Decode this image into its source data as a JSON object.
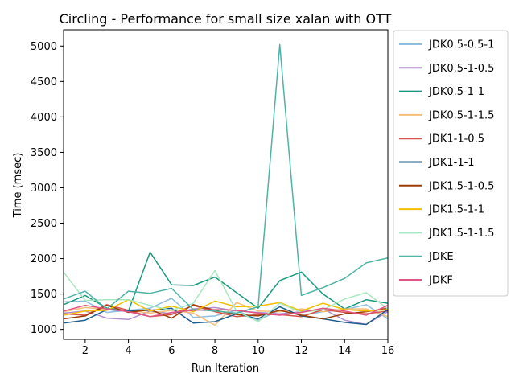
{
  "chart_data": {
    "type": "line",
    "title": "Circling - Performance for small size xalan with OTT",
    "xlabel": "Run Iteration",
    "ylabel": "Time (msec)",
    "xlim": [
      1,
      16
    ],
    "ylim": [
      860,
      5230
    ],
    "xticks": [
      2,
      4,
      6,
      8,
      10,
      12,
      14,
      16
    ],
    "yticks": [
      1000,
      1500,
      2000,
      2500,
      3000,
      3500,
      4000,
      4500,
      5000
    ],
    "legend_position": "outside-right",
    "grid": false,
    "x": [
      1,
      2,
      3,
      4,
      5,
      6,
      7,
      8,
      9,
      10,
      11,
      12,
      13,
      14,
      15,
      16
    ],
    "series": [
      {
        "name": "JDK0.5-0.5-1",
        "color": "#8fbfe0",
        "values": [
          1390,
          1400,
          1240,
          1270,
          1300,
          1440,
          1170,
          1190,
          1270,
          1130,
          1270,
          1200,
          1250,
          1280,
          1350,
          1150
        ]
      },
      {
        "name": "JDK0.5-1-0.5",
        "color": "#b48fcc",
        "values": [
          1230,
          1260,
          1160,
          1140,
          1260,
          1220,
          1290,
          1310,
          1260,
          1240,
          1220,
          1250,
          1290,
          1130,
          1070,
          1250
        ]
      },
      {
        "name": "JDK0.5-1-1",
        "color": "#1a9a80",
        "values": [
          1350,
          1480,
          1300,
          1260,
          2090,
          1630,
          1620,
          1740,
          1520,
          1300,
          1690,
          1810,
          1500,
          1290,
          1420,
          1370
        ]
      },
      {
        "name": "JDK0.5-1-1.5",
        "color": "#f5be78",
        "values": [
          1250,
          1310,
          1280,
          1270,
          1230,
          1270,
          1230,
          1060,
          1380,
          1260,
          1250,
          1290,
          1250,
          1290,
          1290,
          1180
        ]
      },
      {
        "name": "JDK1-1-0.5",
        "color": "#d4544a",
        "values": [
          1220,
          1200,
          1350,
          1270,
          1180,
          1210,
          1340,
          1250,
          1180,
          1210,
          1210,
          1180,
          1280,
          1240,
          1220,
          1260
        ]
      },
      {
        "name": "JDK1-1-1",
        "color": "#1f5f8b",
        "values": [
          1090,
          1130,
          1280,
          1260,
          1270,
          1300,
          1090,
          1110,
          1220,
          1150,
          1320,
          1190,
          1150,
          1100,
          1070,
          1280
        ]
      },
      {
        "name": "JDK1.5-1-0.5",
        "color": "#9c3d06",
        "values": [
          1150,
          1190,
          1340,
          1240,
          1280,
          1160,
          1350,
          1270,
          1210,
          1190,
          1270,
          1200,
          1150,
          1220,
          1250,
          1300
        ]
      },
      {
        "name": "JDK1.5-1-1",
        "color": "#f2c000",
        "values": [
          1200,
          1260,
          1270,
          1420,
          1260,
          1330,
          1250,
          1400,
          1320,
          1330,
          1380,
          1260,
          1370,
          1280,
          1260,
          1280
        ]
      },
      {
        "name": "JDK1.5-1-1.5",
        "color": "#a8e8c0",
        "values": [
          1810,
          1410,
          1420,
          1420,
          1340,
          1270,
          1370,
          1830,
          1260,
          1110,
          1370,
          1240,
          1280,
          1430,
          1520,
          1290
        ]
      },
      {
        "name": "JDKE",
        "color": "#4db3a6",
        "values": [
          1430,
          1540,
          1290,
          1540,
          1510,
          1580,
          1280,
          1260,
          1230,
          1320,
          5020,
          1480,
          1590,
          1720,
          1940,
          2010
        ]
      },
      {
        "name": "JDKF",
        "color": "#e05585",
        "values": [
          1260,
          1340,
          1290,
          1250,
          1180,
          1240,
          1270,
          1280,
          1270,
          1230,
          1200,
          1240,
          1300,
          1260,
          1200,
          1340
        ]
      }
    ]
  }
}
